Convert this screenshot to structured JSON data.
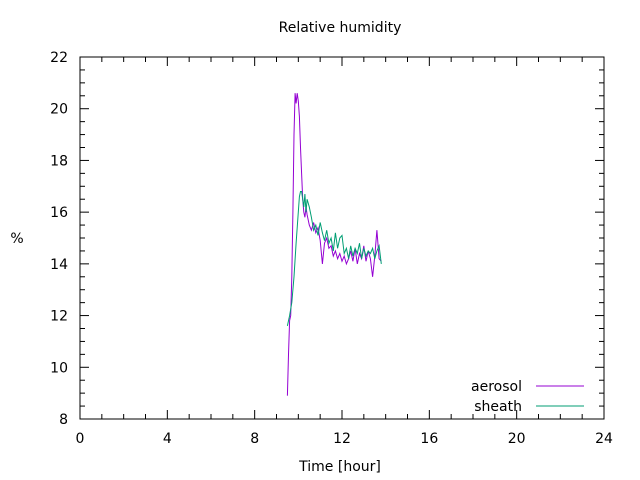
{
  "chart_data": {
    "type": "line",
    "title": "Relative humidity",
    "xlabel": "Time [hour]",
    "ylabel": "%",
    "xlim": [
      0,
      24
    ],
    "ylim": [
      8,
      22
    ],
    "xticks": [
      0,
      4,
      8,
      12,
      16,
      20,
      24
    ],
    "yticks": [
      8,
      10,
      12,
      14,
      16,
      18,
      20,
      22
    ],
    "x_minor_step": 1,
    "y_minor_step": 0.5,
    "grid": false,
    "legend": "bottom-right",
    "series": [
      {
        "name": "aerosol",
        "color": "#9400d3",
        "x": [
          9.5,
          9.55,
          9.6,
          9.65,
          9.7,
          9.75,
          9.8,
          9.85,
          9.9,
          9.95,
          10.0,
          10.05,
          10.1,
          10.15,
          10.2,
          10.25,
          10.3,
          10.35,
          10.4,
          10.5,
          10.6,
          10.7,
          10.8,
          10.9,
          11.0,
          11.1,
          11.2,
          11.3,
          11.4,
          11.5,
          11.6,
          11.7,
          11.8,
          11.9,
          12.0,
          12.1,
          12.2,
          12.3,
          12.4,
          12.5,
          12.6,
          12.7,
          12.8,
          12.9,
          13.0,
          13.1,
          13.2,
          13.3,
          13.4,
          13.5,
          13.6,
          13.7,
          13.8
        ],
        "values": [
          8.9,
          10.5,
          11.8,
          12.0,
          13.5,
          16.0,
          19.0,
          20.6,
          20.2,
          20.6,
          20.3,
          19.7,
          18.5,
          17.5,
          16.5,
          16.0,
          15.8,
          16.2,
          15.9,
          15.5,
          15.3,
          15.6,
          15.2,
          15.4,
          14.9,
          14.0,
          14.8,
          15.0,
          14.6,
          14.7,
          14.3,
          14.5,
          14.2,
          14.4,
          14.1,
          14.3,
          14.0,
          14.2,
          14.5,
          14.1,
          14.6,
          14.0,
          14.4,
          14.2,
          14.7,
          14.1,
          14.5,
          14.2,
          13.5,
          14.3,
          15.3,
          14.2,
          14.1
        ]
      },
      {
        "name": "sheath",
        "color": "#009e73",
        "x": [
          9.5,
          9.6,
          9.7,
          9.8,
          9.9,
          10.0,
          10.05,
          10.1,
          10.15,
          10.2,
          10.25,
          10.3,
          10.35,
          10.4,
          10.5,
          10.6,
          10.7,
          10.8,
          10.9,
          11.0,
          11.1,
          11.2,
          11.3,
          11.4,
          11.5,
          11.6,
          11.7,
          11.8,
          11.9,
          12.0,
          12.1,
          12.2,
          12.3,
          12.4,
          12.5,
          12.6,
          12.7,
          12.8,
          12.9,
          13.0,
          13.1,
          13.2,
          13.3,
          13.4,
          13.5,
          13.6,
          13.7,
          13.8
        ],
        "values": [
          11.6,
          12.0,
          12.5,
          13.5,
          14.8,
          16.0,
          16.6,
          16.8,
          16.8,
          16.5,
          16.2,
          16.7,
          16.0,
          16.5,
          16.2,
          15.8,
          15.3,
          15.5,
          15.1,
          15.6,
          15.2,
          14.9,
          15.3,
          14.8,
          15.0,
          14.5,
          15.2,
          14.6,
          15.0,
          15.1,
          14.4,
          14.6,
          14.2,
          14.7,
          14.3,
          14.6,
          14.4,
          14.8,
          14.2,
          14.6,
          14.3,
          14.5,
          14.4,
          14.6,
          14.2,
          14.5,
          14.7,
          14.0
        ]
      }
    ]
  }
}
